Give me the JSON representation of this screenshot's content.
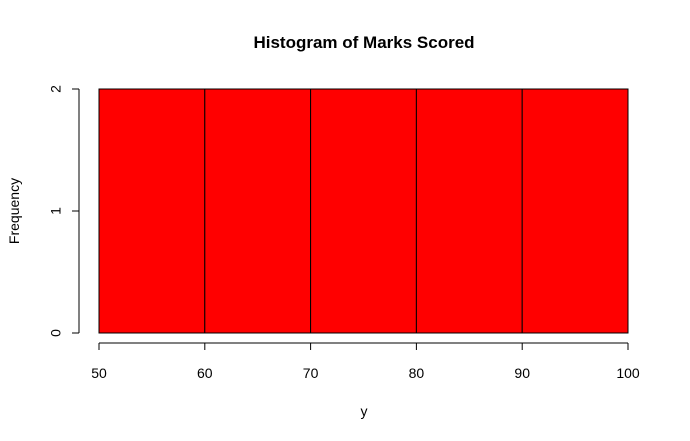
{
  "chart_data": {
    "type": "bar",
    "title": "Histogram of Marks Scored",
    "xlabel": "y",
    "ylabel": "Frequency",
    "bins": [
      {
        "from": 50,
        "to": 60,
        "count": 2
      },
      {
        "from": 60,
        "to": 70,
        "count": 2
      },
      {
        "from": 70,
        "to": 80,
        "count": 2
      },
      {
        "from": 80,
        "to": 90,
        "count": 2
      },
      {
        "from": 90,
        "to": 100,
        "count": 2
      }
    ],
    "xlim": [
      50,
      100
    ],
    "ylim": [
      0,
      2
    ],
    "x_ticks": [
      50,
      60,
      70,
      80,
      90,
      100
    ],
    "y_ticks": [
      0,
      1,
      2
    ],
    "bar_color": "#ff0000",
    "grid": false,
    "legend": "none"
  }
}
